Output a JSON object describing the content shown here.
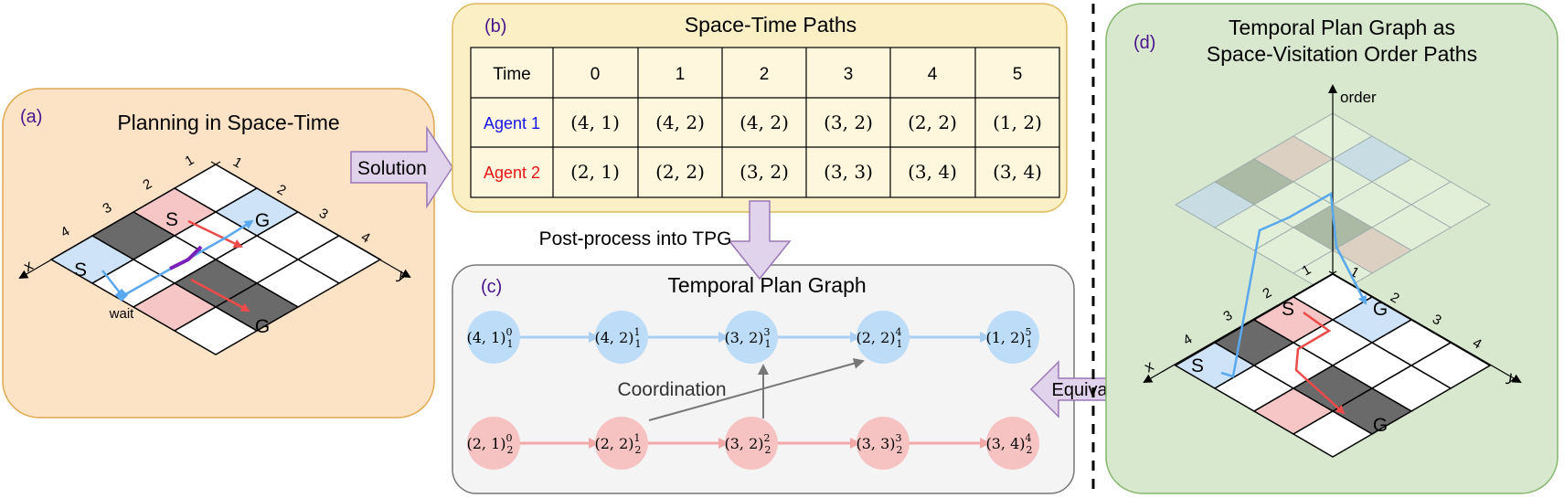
{
  "panel_a": {
    "letter": "(a)",
    "title": "Planning in Space-Time",
    "x_label": "x",
    "y_label": "y",
    "x_ticks": [
      "1",
      "2",
      "3",
      "4"
    ],
    "y_ticks": [
      "1",
      "2",
      "3",
      "4"
    ],
    "start": "S",
    "goal": "G",
    "wait": "wait"
  },
  "solution_label": "Solution",
  "panel_b": {
    "letter": "(b)",
    "title": "Space-Time Paths",
    "header": [
      "Time",
      "0",
      "1",
      "2",
      "3",
      "4",
      "5"
    ],
    "rows": [
      {
        "agent": "Agent 1",
        "cells": [
          "(4, 1)",
          "(4, 2)",
          "(4, 2)",
          "(3, 2)",
          "(2, 2)",
          "(1, 2)"
        ]
      },
      {
        "agent": "Agent 2",
        "cells": [
          "(2, 1)",
          "(2, 2)",
          "(3, 2)",
          "(3, 3)",
          "(3, 4)",
          "(3, 4)"
        ]
      }
    ]
  },
  "postprocess_label": "Post-process into TPG",
  "panel_c": {
    "letter": "(c)",
    "title": "Temporal Plan Graph",
    "coordination": "Coordination",
    "agent1_nodes": [
      {
        "pos": "(4, 1)",
        "sub": "1",
        "sup": "0"
      },
      {
        "pos": "(4, 2)",
        "sub": "1",
        "sup": "1"
      },
      {
        "pos": "(3, 2)",
        "sub": "1",
        "sup": "3"
      },
      {
        "pos": "(2, 2)",
        "sub": "1",
        "sup": "4"
      },
      {
        "pos": "(1, 2)",
        "sub": "1",
        "sup": "5"
      }
    ],
    "agent2_nodes": [
      {
        "pos": "(2, 1)",
        "sub": "2",
        "sup": "0"
      },
      {
        "pos": "(2, 2)",
        "sub": "2",
        "sup": "1"
      },
      {
        "pos": "(3, 2)",
        "sub": "2",
        "sup": "2"
      },
      {
        "pos": "(3, 3)",
        "sub": "2",
        "sup": "3"
      },
      {
        "pos": "(3, 4)",
        "sub": "2",
        "sup": "4"
      }
    ]
  },
  "equivalence_label": "Equivalence",
  "panel_d": {
    "letter": "(d)",
    "title_line1": "Temporal Plan Graph as",
    "title_line2": "Space-Visitation Order Paths",
    "order_label": "order",
    "x_label": "x",
    "y_label": "y",
    "x_ticks": [
      "1",
      "2",
      "3",
      "4"
    ],
    "y_ticks": [
      "1",
      "2",
      "3",
      "4"
    ],
    "start": "S",
    "goal_top": "G",
    "start_pink": "S",
    "goal": "G"
  },
  "colors": {
    "agent1": "#1515e8",
    "agent2": "#e81515",
    "blue_path": "#5aa8ee",
    "red_path": "#ee4a4a",
    "node_blue": "#bcdcf7",
    "node_pink": "#f6c2c2",
    "panel_orange": "#fde3c6",
    "panel_yellow": "#fbefc6",
    "panel_gray": "#f4f4f4",
    "panel_green": "#d7e8cf",
    "arrow_purple": "#e2d3ec",
    "letter": "#4a148c"
  }
}
